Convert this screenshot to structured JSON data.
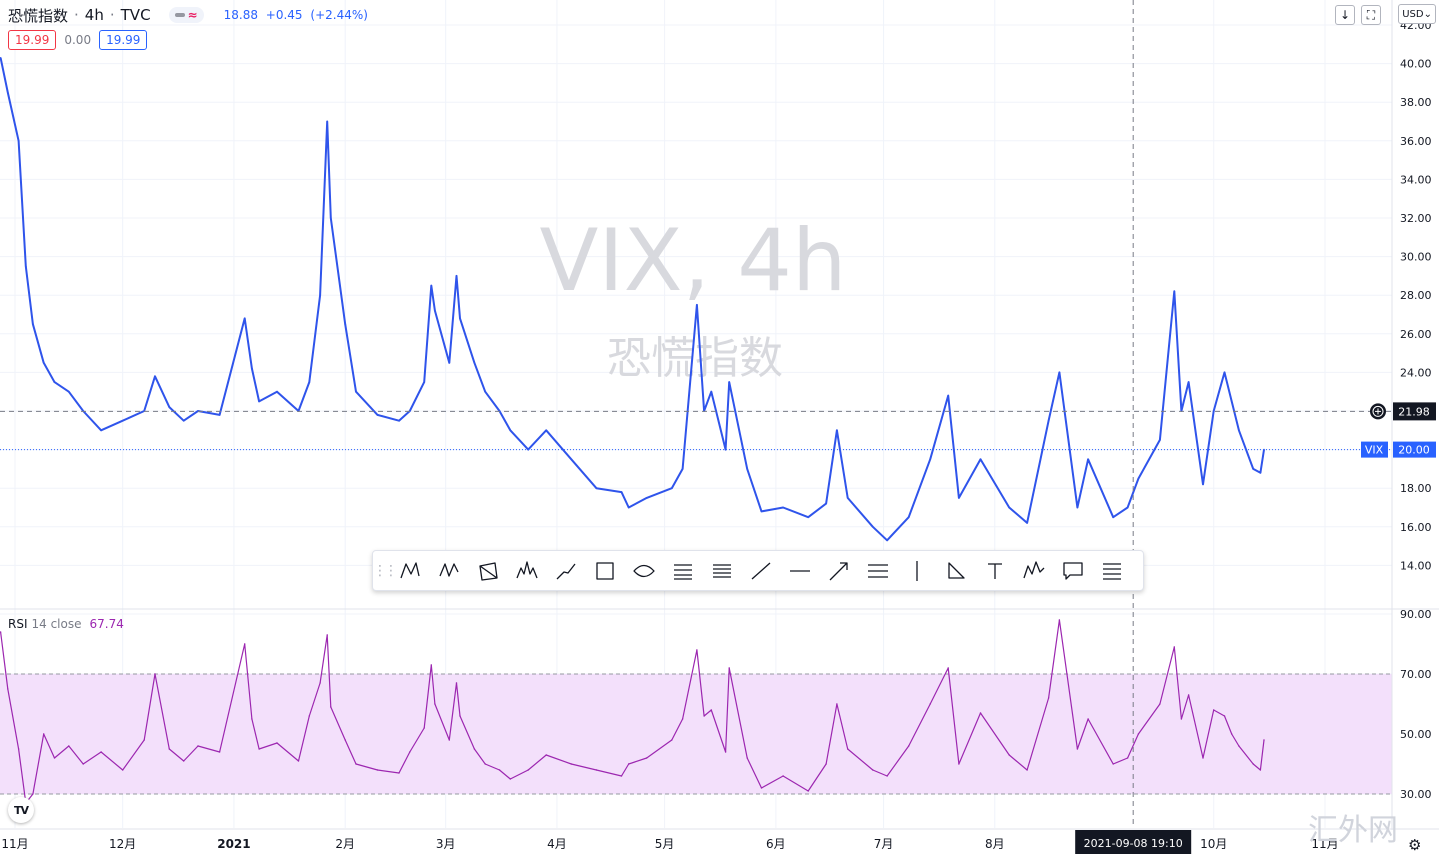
{
  "header": {
    "symbol_name": "恐慌指数",
    "interval": "4h",
    "exchange": "TVC",
    "sep": "·",
    "pill_icons": [
      "minus-icon",
      "approx-icon"
    ],
    "last": "18.88",
    "change": "+0.45",
    "change_pct": "(+2.44%)"
  },
  "values_row": {
    "open": "19.99",
    "mid": "0.00",
    "close": "19.99"
  },
  "controls": {
    "currency": "USD",
    "down_icon": "arrow-down-icon",
    "fullscreen_icon": "fullscreen-icon"
  },
  "watermark": {
    "title": "VIX, 4h",
    "subtitle": "恐慌指数"
  },
  "price_axis": {
    "labels": [
      "42.00",
      "40.00",
      "38.00",
      "36.00",
      "34.00",
      "32.00",
      "30.00",
      "28.00",
      "26.00",
      "24.00",
      "22.00",
      "20.00",
      "18.00",
      "16.00",
      "14.00"
    ],
    "crosshair_label": "21.98",
    "symbol_tag": "VIX",
    "symbol_price": "20.00"
  },
  "rsi_axis": {
    "labels": [
      "90.00",
      "70.00",
      "50.00",
      "30.00"
    ]
  },
  "rsi_legend": {
    "name": "RSI",
    "params": "14 close",
    "value": "67.74"
  },
  "time_axis": {
    "labels": [
      "11月",
      "12月",
      "2021",
      "2月",
      "3月",
      "4月",
      "5月",
      "6月",
      "7月",
      "8月",
      "10月",
      "11月"
    ],
    "crosshair_label": "2021-09-08   19:10"
  },
  "drawing_toolbar": {
    "tools": [
      "xabcd-pattern-icon",
      "cypher-pattern-icon",
      "abcd-pattern-icon",
      "head-shoulders-icon",
      "path-icon",
      "rectangle-icon",
      "ellipse-icon",
      "fib-retracement-icon",
      "fib-extension-icon",
      "trend-line-icon",
      "horizontal-line-icon",
      "arrow-icon",
      "parallel-channel-icon",
      "vertical-line-icon",
      "triangle-icon",
      "text-icon",
      "elliott-wave-icon",
      "callout-icon",
      "fib-channel-icon"
    ]
  },
  "branding": {
    "tv_logo": "TV",
    "site_watermark": "汇外网"
  },
  "colors": {
    "price_line": "#2f54eb",
    "rsi_line": "#9c27b0",
    "rsi_band": "#f3e0fb",
    "red": "#f23645",
    "blue": "#2962ff"
  },
  "chart_data": [
    {
      "type": "line",
      "title": "VIX, 4h",
      "subtitle": "恐慌指数",
      "ylim": [
        13,
        42.5
      ],
      "series": [
        {
          "name": "VIX",
          "x": [
            "2020-10-28",
            "2020-10-30",
            "2020-11-02",
            "2020-11-04",
            "2020-11-06",
            "2020-11-09",
            "2020-11-12",
            "2020-11-16",
            "2020-11-20",
            "2020-11-25",
            "2020-12-01",
            "2020-12-07",
            "2020-12-10",
            "2020-12-14",
            "2020-12-18",
            "2020-12-22",
            "2020-12-28",
            "2021-01-04",
            "2021-01-06",
            "2021-01-08",
            "2021-01-13",
            "2021-01-19",
            "2021-01-22",
            "2021-01-25",
            "2021-01-27",
            "2021-01-28",
            "2021-02-01",
            "2021-02-04",
            "2021-02-10",
            "2021-02-16",
            "2021-02-19",
            "2021-02-23",
            "2021-02-25",
            "2021-02-26",
            "2021-03-02",
            "2021-03-04",
            "2021-03-05",
            "2021-03-09",
            "2021-03-12",
            "2021-03-16",
            "2021-03-19",
            "2021-03-24",
            "2021-03-29",
            "2021-04-05",
            "2021-04-12",
            "2021-04-19",
            "2021-04-21",
            "2021-04-26",
            "2021-05-03",
            "2021-05-06",
            "2021-05-10",
            "2021-05-12",
            "2021-05-14",
            "2021-05-18",
            "2021-05-19",
            "2021-05-24",
            "2021-05-28",
            "2021-06-03",
            "2021-06-10",
            "2021-06-15",
            "2021-06-18",
            "2021-06-21",
            "2021-06-28",
            "2021-07-02",
            "2021-07-08",
            "2021-07-14",
            "2021-07-19",
            "2021-07-22",
            "2021-07-28",
            "2021-08-05",
            "2021-08-10",
            "2021-08-16",
            "2021-08-19",
            "2021-08-24",
            "2021-08-27",
            "2021-09-03",
            "2021-09-07",
            "2021-09-10",
            "2021-09-16",
            "2021-09-20",
            "2021-09-22",
            "2021-09-24",
            "2021-09-28",
            "2021-10-01",
            "2021-10-04",
            "2021-10-06",
            "2021-10-08",
            "2021-10-12",
            "2021-10-14",
            "2021-10-15"
          ],
          "values": [
            40.3,
            38.5,
            36.0,
            29.5,
            26.5,
            24.5,
            23.5,
            23.0,
            22.0,
            21.0,
            21.5,
            22.0,
            23.8,
            22.2,
            21.5,
            22.0,
            21.8,
            26.8,
            24.2,
            22.5,
            23.0,
            22.0,
            23.5,
            28.0,
            37.0,
            32.0,
            26.5,
            23.0,
            21.8,
            21.5,
            22.0,
            23.5,
            28.5,
            27.2,
            24.5,
            29.0,
            26.8,
            24.5,
            23.0,
            22.0,
            21.0,
            20.0,
            21.0,
            19.5,
            18.0,
            17.8,
            17.0,
            17.5,
            18.0,
            19.0,
            27.5,
            22.0,
            23.0,
            20.0,
            23.5,
            19.0,
            16.8,
            17.0,
            16.5,
            17.2,
            21.0,
            17.5,
            16.0,
            15.3,
            16.5,
            19.5,
            22.8,
            17.5,
            19.5,
            17.0,
            16.2,
            21.5,
            24.0,
            17.0,
            19.5,
            16.5,
            17.0,
            18.5,
            20.5,
            28.2,
            22.0,
            23.5,
            18.2,
            22.0,
            24.0,
            22.5,
            21.0,
            19.0,
            18.8,
            20.0
          ]
        }
      ]
    },
    {
      "type": "line",
      "title": "RSI 14 close",
      "ylim": [
        18,
        96
      ],
      "bands": {
        "upper": 70,
        "lower": 30
      },
      "series": [
        {
          "name": "RSI",
          "x": [
            "2020-10-28",
            "2020-10-30",
            "2020-11-02",
            "2020-11-04",
            "2020-11-06",
            "2020-11-09",
            "2020-11-12",
            "2020-11-16",
            "2020-11-20",
            "2020-11-25",
            "2020-12-01",
            "2020-12-07",
            "2020-12-10",
            "2020-12-14",
            "2020-12-18",
            "2020-12-22",
            "2020-12-28",
            "2021-01-04",
            "2021-01-06",
            "2021-01-08",
            "2021-01-13",
            "2021-01-19",
            "2021-01-22",
            "2021-01-25",
            "2021-01-27",
            "2021-01-28",
            "2021-02-01",
            "2021-02-04",
            "2021-02-10",
            "2021-02-16",
            "2021-02-19",
            "2021-02-23",
            "2021-02-25",
            "2021-02-26",
            "2021-03-02",
            "2021-03-04",
            "2021-03-05",
            "2021-03-09",
            "2021-03-12",
            "2021-03-16",
            "2021-03-19",
            "2021-03-24",
            "2021-03-29",
            "2021-04-05",
            "2021-04-12",
            "2021-04-19",
            "2021-04-21",
            "2021-04-26",
            "2021-05-03",
            "2021-05-06",
            "2021-05-10",
            "2021-05-12",
            "2021-05-14",
            "2021-05-18",
            "2021-05-19",
            "2021-05-24",
            "2021-05-28",
            "2021-06-03",
            "2021-06-10",
            "2021-06-15",
            "2021-06-18",
            "2021-06-21",
            "2021-06-28",
            "2021-07-02",
            "2021-07-08",
            "2021-07-14",
            "2021-07-19",
            "2021-07-22",
            "2021-07-28",
            "2021-08-05",
            "2021-08-10",
            "2021-08-16",
            "2021-08-19",
            "2021-08-24",
            "2021-08-27",
            "2021-09-03",
            "2021-09-07",
            "2021-09-10",
            "2021-09-16",
            "2021-09-20",
            "2021-09-22",
            "2021-09-24",
            "2021-09-28",
            "2021-10-01",
            "2021-10-04",
            "2021-10-06",
            "2021-10-08",
            "2021-10-12",
            "2021-10-14",
            "2021-10-15"
          ],
          "values": [
            84,
            65,
            45,
            27,
            30,
            50,
            42,
            46,
            40,
            44,
            38,
            48,
            70,
            45,
            41,
            46,
            44,
            80,
            55,
            45,
            47,
            41,
            56,
            67,
            83,
            59,
            48,
            40,
            38,
            37,
            44,
            52,
            73,
            60,
            48,
            67,
            56,
            45,
            40,
            38,
            35,
            38,
            43,
            40,
            38,
            36,
            40,
            42,
            48,
            55,
            78,
            56,
            58,
            44,
            72,
            42,
            32,
            36,
            31,
            40,
            60,
            45,
            38,
            36,
            46,
            60,
            72,
            40,
            57,
            43,
            38,
            62,
            88,
            45,
            55,
            40,
            42,
            50,
            60,
            79,
            55,
            63,
            42,
            58,
            56,
            50,
            46,
            40,
            38,
            48
          ]
        }
      ]
    }
  ]
}
